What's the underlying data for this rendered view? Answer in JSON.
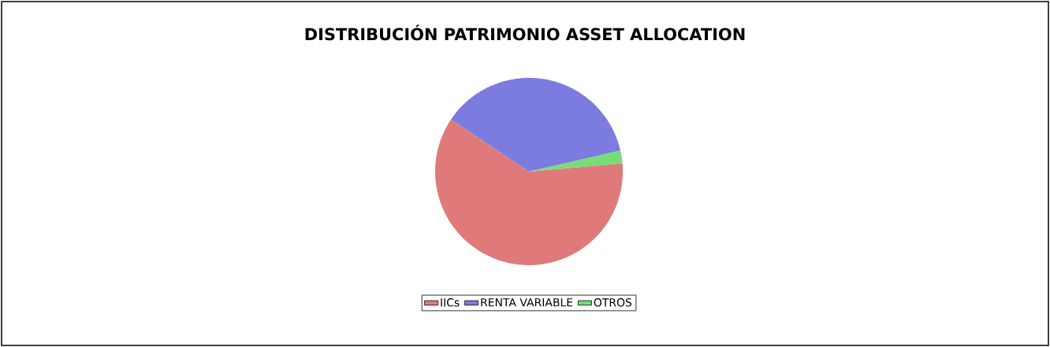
{
  "chart_data": {
    "type": "pie",
    "title": "DISTRIBUCIÓN PATRIMONIO ASSET ALLOCATION",
    "categories": [
      "IICs",
      "RENTA VARIABLE",
      "OTROS"
    ],
    "values": [
      60.8,
      37.0,
      2.2
    ],
    "colors": [
      "#e07a7a",
      "#7b7be0",
      "#77dd77"
    ],
    "legend": "bottom"
  }
}
